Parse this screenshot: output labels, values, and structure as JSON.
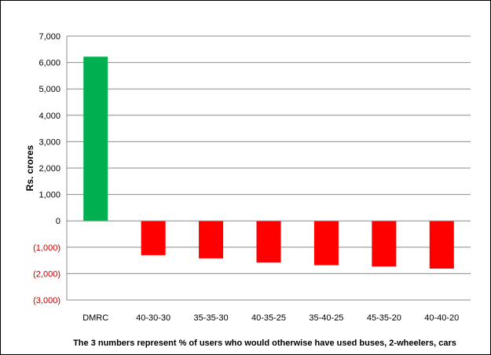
{
  "chart_data": {
    "type": "bar",
    "title": "",
    "xlabel": "The 3 numbers represent % of users who would otherwise have used buses, 2-wheelers, cars",
    "ylabel": "Rs. crores",
    "ylim": [
      -3000,
      7000
    ],
    "yticks": [
      7000,
      6000,
      5000,
      4000,
      3000,
      2000,
      1000,
      0,
      -1000,
      -2000,
      -3000
    ],
    "ytick_labels": [
      "7,000",
      "6,000",
      "5,000",
      "4,000",
      "3,000",
      "2,000",
      "1,000",
      "0",
      "(1,000)",
      "(2,000)",
      "(3,000)"
    ],
    "categories": [
      "DMRC",
      "40-30-30",
      "35-35-30",
      "40-35-25",
      "35-40-25",
      "45-35-20",
      "40-40-20"
    ],
    "values": [
      6220,
      -1300,
      -1420,
      -1580,
      -1680,
      -1730,
      -1810
    ],
    "positive_color": "#00b050",
    "negative_color": "#ff0000",
    "grid": true,
    "legend": "none"
  }
}
